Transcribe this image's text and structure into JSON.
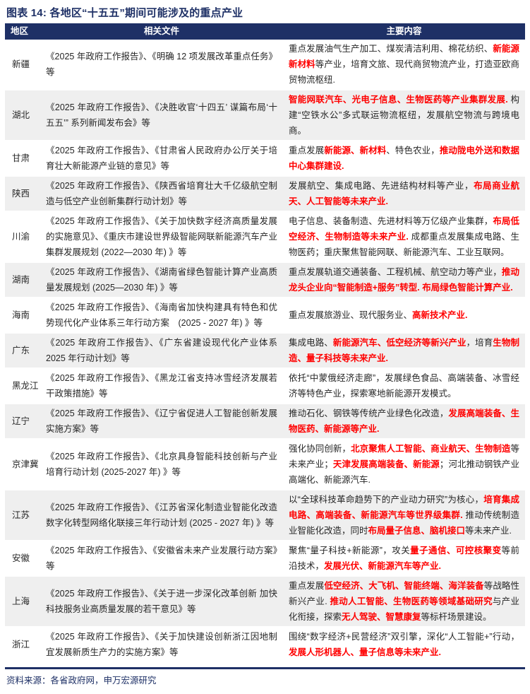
{
  "figure": {
    "title": "图表 14: 各地区“十五五”期间可能涉及的重点产业",
    "source_note": "资料来源：各省政府网，申万宏源研究"
  },
  "colors": {
    "navy": "#1e3066",
    "highlight_red": "#ff0000",
    "row_stripe": "#efefef",
    "body_text": "#262626"
  },
  "table": {
    "headers": [
      "地区",
      "相关文件",
      "主要内容"
    ],
    "rows": [
      {
        "region": "新疆",
        "docs": "《2025 年政府工作报告》、《明确 12 项发展改革重点任务》等",
        "content": [
          {
            "text": "重点发展油气生产加工、煤炭清洁利用、棉花纺织、",
            "red": false
          },
          {
            "text": "新能源新材料",
            "red": true
          },
          {
            "text": "等产业，培育文旅、现代商贸物流产业，打造亚欧商贸物流枢纽.",
            "red": false
          }
        ]
      },
      {
        "region": "湖北",
        "docs": "《2025 年政府工作报告》、《决胜收官‘十四五’ 谋篇布局‘十五五’” 系列新闻发布会》等",
        "content": [
          {
            "text": "智能网联汽车、光电子信息、生物医药等产业集群发展. ",
            "red": true
          },
          {
            "text": "构建“空铁水公”多式联运物流枢纽，发展航空物流与跨境电商。",
            "red": false
          }
        ]
      },
      {
        "region": "甘肃",
        "docs": "《2025 年政府工作报告》、《甘肃省人民政府办公厅关于培育壮大新能源产业链的意见》等",
        "content": [
          {
            "text": "重点发展",
            "red": false
          },
          {
            "text": "新能源、新材料",
            "red": true
          },
          {
            "text": "、特色农业，",
            "red": false
          },
          {
            "text": "推动陇电外送和数据中心集群建设.",
            "red": true
          }
        ]
      },
      {
        "region": "陕西",
        "docs": "《2025 年政府工作报告》、《陕西省培育壮大千亿级航空制造与低空产业创新集群行动计划》等",
        "content": [
          {
            "text": "发展航空、集成电路、先进结构材料等产业，",
            "red": false
          },
          {
            "text": "布局商业航天、人工智能等未来产业.",
            "red": true
          }
        ]
      },
      {
        "region": "川渝",
        "docs": "《2025 年政府工作报告》、《关于加快数字经济高质量发展的实施意见》、《重庆市建设世界级智能网联新能源汽车产业集群发展规划 (2022—2030 年) 》等",
        "content": [
          {
            "text": "电子信息、装备制造、先进材料等万亿级产业集群，",
            "red": false
          },
          {
            "text": "布局低空经济、生物制造等未来产业. ",
            "red": true
          },
          {
            "text": "成都重点发展集成电路、生物医药；重庆聚焦智能网联、新能源汽车、工业互联网。",
            "red": false
          }
        ]
      },
      {
        "region": "湖南",
        "docs": "《2025 年政府工作报告》、《湖南省绿色智能计算产业高质量发展规划 (2025—2030 年) 》等",
        "content": [
          {
            "text": "重点发展轨道交通装备、工程机械、航空动力等产业，",
            "red": false
          },
          {
            "text": "推动龙头企业向“智能制造+服务”转型. 布局绿色智能计算产业.",
            "red": true
          }
        ]
      },
      {
        "region": "海南",
        "docs": "《2025 年政府工作报告》、《海南省加快构建具有特色和优势现代化产业体系三年行动方案　(2025 - 2027 年) 》等",
        "content": [
          {
            "text": "重点发展旅游业、现代服务业、",
            "red": false
          },
          {
            "text": "高新技术产业.",
            "red": true
          }
        ]
      },
      {
        "region": "广东",
        "docs": "《2025 年政府工作报告》、《广东省建设现代化产业体系 2025 年行动计划》等",
        "content": [
          {
            "text": "集成电路、",
            "red": false
          },
          {
            "text": "新能源汽车、低空经济等新兴产业",
            "red": true
          },
          {
            "text": "，培育",
            "red": false
          },
          {
            "text": "生物制造、量子科技等未来产业.",
            "red": true
          }
        ]
      },
      {
        "region": "黑龙江",
        "docs": "《2025 年政府工作报告》、《黑龙江省支持冰雪经济发展若干政策措施》等",
        "content": [
          {
            "text": "依托“中蒙俄经济走廊”，发展绿色食品、高端装备、冰雪经济等特色产业，探索寒地新能源开发模式。",
            "red": false
          }
        ]
      },
      {
        "region": "辽宁",
        "docs": "《2025 年政府工作报告》、《辽宁省促进人工智能创新发展实施方案》等",
        "content": [
          {
            "text": "推动石化、钢铁等传统产业绿色化改造，",
            "red": false
          },
          {
            "text": "发展高端装备、生物医药、新能源等产业.",
            "red": true
          }
        ]
      },
      {
        "region": "京津冀",
        "docs": "《2025 年政府工作报告》、《北京具身智能科技创新与产业培育行动计划 (2025-2027 年) 》等",
        "content": [
          {
            "text": "强化协同创新，",
            "red": false
          },
          {
            "text": "北京聚焦人工智能、商业航天、生物制造",
            "red": true
          },
          {
            "text": "等未来产业；",
            "red": false
          },
          {
            "text": "天津发展高端装备、新能源",
            "red": true
          },
          {
            "text": "；河北推动钢铁产业高端化、新能源汽车.",
            "red": false
          }
        ]
      },
      {
        "region": "江苏",
        "docs": "《2025 年政府工作报告》、《江苏省深化制造业智能化改造数字化转型网络化联接三年行动计划 (2025 - 2027 年) 》等",
        "content": [
          {
            "text": "以“全球科技革命趋势下的产业动力研究”为核心，",
            "red": false
          },
          {
            "text": "培育集成电路、高端装备、新能源汽车等世界级集群. ",
            "red": true
          },
          {
            "text": "推动传统制造业智能化改造，同时",
            "red": false
          },
          {
            "text": "布局量子信息、脑机接口",
            "red": true
          },
          {
            "text": "等未来产业.",
            "red": false
          }
        ]
      },
      {
        "region": "安徽",
        "docs": "《2025 年政府工作报告》、《安徽省未来产业发展行动方案》等",
        "content": [
          {
            "text": "聚焦“量子科技+新能源”，攻关",
            "red": false
          },
          {
            "text": "量子通信、可控核聚变",
            "red": true
          },
          {
            "text": "等前沿技术，",
            "red": false
          },
          {
            "text": "发展光伏、新能源汽车等产业.",
            "red": true
          }
        ]
      },
      {
        "region": "上海",
        "docs": "《2025 年政府工作报告》、《关于进一步深化改革创新 加快科技服务业高质量发展的若干意见》等",
        "content": [
          {
            "text": "重点发展",
            "red": false
          },
          {
            "text": "低空经济、大飞机、智能终端、海洋装备",
            "red": true
          },
          {
            "text": "等战略性新兴产业. ",
            "red": false
          },
          {
            "text": "推动人工智能、生物医药等领域基础研究",
            "red": true
          },
          {
            "text": "与产业化衔接，探索",
            "red": false
          },
          {
            "text": "无人驾驶、智慧康复",
            "red": true
          },
          {
            "text": "等标杆场景建设。",
            "red": false
          }
        ]
      },
      {
        "region": "浙江",
        "docs": "《2025 年政府工作报告》、《关于加快建设创新浙江因地制宜发展新质生产力的实施方案》等",
        "content": [
          {
            "text": "围绕“数字经济+民营经济”双引擎，深化“人工智能+”行动，",
            "red": false
          },
          {
            "text": "发展人形机器人、量子信息等未来产业.",
            "red": true
          }
        ]
      }
    ]
  }
}
